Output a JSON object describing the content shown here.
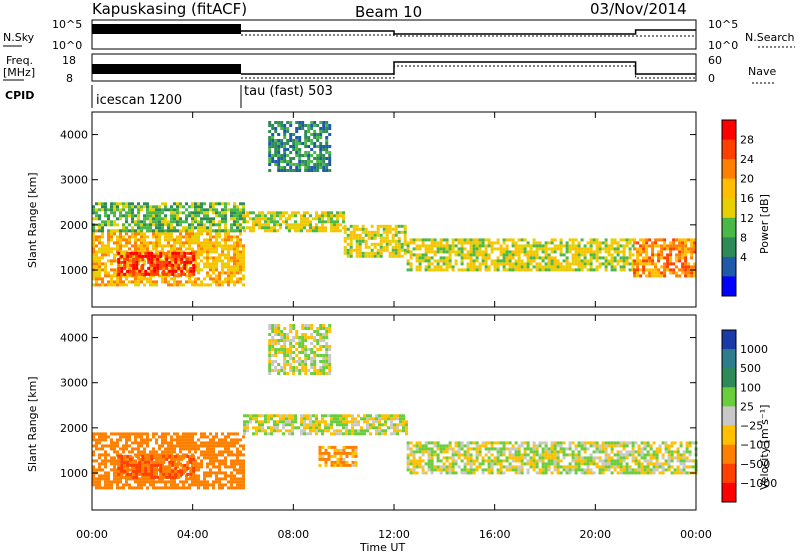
{
  "header": {
    "station": "Kapuskasing (fitACF)",
    "beam": "Beam 10",
    "date": "03/Nov/2014"
  },
  "panels": {
    "nsky_label": "N.Sky",
    "nsky_ticks": [
      "10^5",
      "10^0"
    ],
    "nsearch_label": "N.Search",
    "nsearch_ticks": [
      "10^5",
      "10^0"
    ],
    "freq_label_1": "Freq.",
    "freq_label_2": "[MHz]",
    "freq_ticks": [
      "18",
      "8"
    ],
    "nave_label": "Nave",
    "nave_ticks": [
      "60",
      "0"
    ],
    "cpid_label": "CPID",
    "cpid_1": "icescan 1200",
    "cpid_2": "tau (fast) 503"
  },
  "colorbars": {
    "power": {
      "label": "Power [dB]",
      "ticks": [
        "28",
        "24",
        "20",
        "16",
        "12",
        "8",
        "4"
      ],
      "colors": [
        "#ff0000",
        "#ff4000",
        "#ff8000",
        "#ffbf00",
        "#e8d000",
        "#4ab848",
        "#2e8b57",
        "#1e5aa8",
        "#0000ff"
      ]
    },
    "velocity": {
      "label": "Velocity [m s⁻¹]",
      "ticks": [
        "1000",
        "500",
        "100",
        "25",
        "−25",
        "−100",
        "−500",
        "−1000"
      ],
      "colors": [
        "#1a3aa8",
        "#2e7d8c",
        "#2e8b57",
        "#6acd3c",
        "#c8c8c8",
        "#ffc000",
        "#ff8000",
        "#ff4000",
        "#ff0000"
      ]
    }
  },
  "chart_data": [
    {
      "type": "heatmap",
      "title": "",
      "xlabel": "Time UT",
      "ylabel": "Slant Range [km]",
      "x_ticks": [
        "00:00",
        "04:00",
        "08:00",
        "12:00",
        "16:00",
        "20:00",
        "00:00"
      ],
      "y_ticks": [
        "4000",
        "3000",
        "2000",
        "1000"
      ],
      "xlim_hours": [
        0,
        24
      ],
      "ylim_km": [
        180,
        4500
      ],
      "quantity": "Power",
      "echo_regions_hours_km_db": [
        {
          "t": [
            0.0,
            6.0
          ],
          "r": [
            700,
            1900
          ],
          "db": 18
        },
        {
          "t": [
            1.0,
            4.0
          ],
          "r": [
            900,
            1400
          ],
          "db": 28
        },
        {
          "t": [
            0.0,
            6.0
          ],
          "r": [
            1900,
            2500
          ],
          "db": 10
        },
        {
          "t": [
            6.0,
            10.0
          ],
          "r": [
            1900,
            2300
          ],
          "db": 14
        },
        {
          "t": [
            7.0,
            9.5
          ],
          "r": [
            3200,
            4300
          ],
          "db": 6
        },
        {
          "t": [
            10.0,
            12.5
          ],
          "r": [
            1300,
            2000
          ],
          "db": 14
        },
        {
          "t": [
            12.5,
            21.5
          ],
          "r": [
            1000,
            1700
          ],
          "db": 14
        },
        {
          "t": [
            21.5,
            24.0
          ],
          "r": [
            900,
            1700
          ],
          "db": 22
        }
      ]
    },
    {
      "type": "heatmap",
      "title": "",
      "xlabel": "Time UT",
      "ylabel": "Slant Range [km]",
      "x_ticks": [
        "00:00",
        "04:00",
        "08:00",
        "12:00",
        "16:00",
        "20:00",
        "00:00"
      ],
      "y_ticks": [
        "4000",
        "3000",
        "2000",
        "1000"
      ],
      "xlim_hours": [
        0,
        24
      ],
      "ylim_km": [
        180,
        4500
      ],
      "quantity": "Velocity",
      "echo_regions_hours_km_ms": [
        {
          "t": [
            0.0,
            6.0
          ],
          "r": [
            700,
            1900
          ],
          "v": -300
        },
        {
          "t": [
            1.0,
            4.0
          ],
          "r": [
            900,
            1400
          ],
          "v": -500
        },
        {
          "t": [
            6.0,
            12.5
          ],
          "r": [
            1900,
            2300
          ],
          "v": 0
        },
        {
          "t": [
            7.0,
            9.5
          ],
          "r": [
            3200,
            4300
          ],
          "v": 0
        },
        {
          "t": [
            12.5,
            24.0
          ],
          "r": [
            1000,
            1700
          ],
          "v": 0
        },
        {
          "t": [
            9.0,
            10.5
          ],
          "r": [
            1200,
            1600
          ],
          "v": -100
        }
      ]
    }
  ]
}
